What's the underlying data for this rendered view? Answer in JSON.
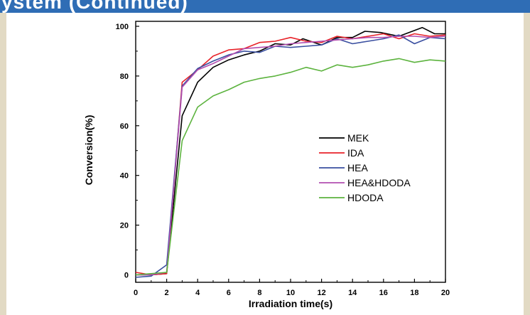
{
  "header": {
    "title": "ystem (Continued)",
    "band_color": "#2f6db5",
    "side_color": "#e2dac4"
  },
  "chart_data": {
    "type": "line",
    "title": "",
    "xlabel": "Irradiation time(s)",
    "ylabel": "Conversion(%)",
    "xlim": [
      0,
      20
    ],
    "ylim": [
      -3,
      102
    ],
    "xticks": [
      0,
      2,
      4,
      6,
      8,
      10,
      12,
      14,
      16,
      18,
      20
    ],
    "yticks": [
      0,
      20,
      40,
      60,
      80,
      100
    ],
    "grid": false,
    "legend_position": "center-right",
    "series": [
      {
        "name": "MEK",
        "color": "#000000",
        "x": [
          0,
          1,
          2,
          3,
          4,
          5,
          6,
          7,
          8,
          9,
          10,
          10.8,
          12,
          13,
          14,
          14.8,
          15.8,
          17,
          18.5,
          19.3,
          20
        ],
        "y": [
          0,
          0,
          0.5,
          64,
          77.5,
          83.5,
          86.5,
          88.5,
          90,
          93,
          92.5,
          95,
          92.5,
          95.5,
          95.5,
          98,
          97.5,
          96,
          99.5,
          97,
          97
        ]
      },
      {
        "name": "IDA",
        "color": "#e8232a",
        "x": [
          0,
          1,
          2,
          3,
          4,
          5,
          6,
          7,
          8,
          9,
          10,
          11,
          12,
          13,
          14,
          15,
          16,
          17,
          18,
          19,
          20
        ],
        "y": [
          1,
          0,
          0.5,
          77.5,
          82.5,
          88,
          90.5,
          91,
          93.5,
          94,
          95.5,
          94,
          93.5,
          96,
          95,
          96,
          97,
          95,
          97,
          96,
          96.5
        ]
      },
      {
        "name": "HEA",
        "color": "#3a4fa0",
        "x": [
          0,
          1,
          2,
          3,
          4,
          5,
          6,
          7,
          8,
          9,
          10,
          11,
          12,
          13,
          14,
          15,
          16,
          17,
          18,
          19,
          20
        ],
        "y": [
          -1,
          -0.5,
          4,
          76,
          83,
          86,
          88.5,
          90,
          89.5,
          92,
          91.5,
          92,
          92.5,
          95,
          93,
          94,
          95,
          96.5,
          93,
          95.5,
          95
        ]
      },
      {
        "name": "HEA&HDODA",
        "color": "#b24fb0",
        "x": [
          0,
          1,
          2,
          3,
          4,
          5,
          6,
          7,
          8,
          9,
          10,
          11,
          12,
          13,
          14,
          15,
          16,
          17,
          18,
          19,
          20
        ],
        "y": [
          0,
          0,
          1,
          75.5,
          82.5,
          85,
          88,
          91,
          91.5,
          92,
          93,
          93.5,
          94,
          94.5,
          95,
          95.5,
          95.5,
          96,
          96,
          95.5,
          96
        ]
      },
      {
        "name": "HDODA",
        "color": "#5cb33e",
        "x": [
          0,
          1,
          2,
          3,
          4,
          5,
          6,
          7,
          8,
          9,
          10,
          11,
          12,
          13,
          14,
          15,
          16,
          17,
          18,
          19,
          20
        ],
        "y": [
          0,
          0.5,
          1,
          54,
          67.5,
          72,
          74.5,
          77.5,
          79,
          80,
          81.5,
          83.5,
          82,
          84.5,
          83.5,
          84.5,
          86,
          87,
          85.5,
          86.5,
          86
        ]
      }
    ]
  }
}
